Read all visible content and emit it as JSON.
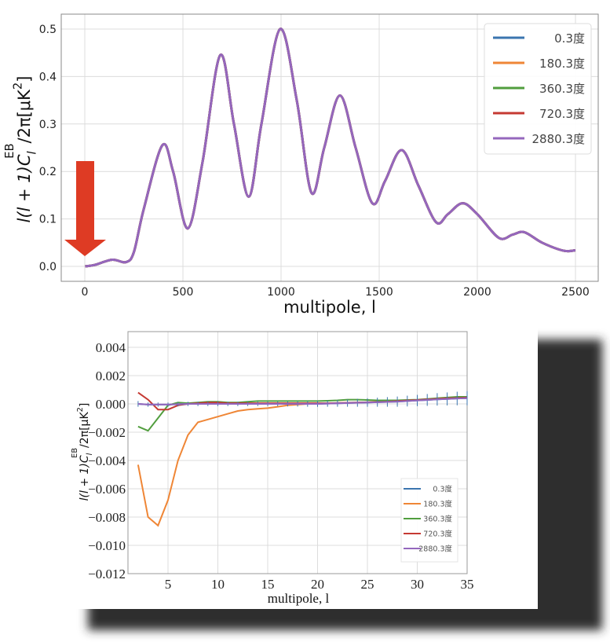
{
  "chart_data": [
    {
      "type": "line",
      "xlabel": "multipole, l",
      "ylabel": {
        "pre": "l(l + 1)C",
        "sub": "l",
        "sup": "EB",
        "mid": "/2π[μK",
        "sup2": "2",
        "post": "]"
      },
      "xlim": [
        -125,
        2625
      ],
      "ylim": [
        -0.035,
        0.53
      ],
      "xticks": [
        "0",
        "500",
        "1000",
        "1500",
        "2000",
        "2500"
      ],
      "xtick_values": [
        0,
        500,
        1000,
        1500,
        2000,
        2500
      ],
      "yticks": [
        "0.0",
        "0.1",
        "0.2",
        "0.3",
        "0.4",
        "0.5"
      ],
      "ytick_values": [
        0,
        0.1,
        0.2,
        0.3,
        0.4,
        0.5
      ],
      "grid": true,
      "legend_position": "top-right",
      "annotation": "red down arrow pointing at low multipoles (l ≈ 0)",
      "x": [
        2,
        50,
        140,
        210,
        250,
        300,
        395,
        450,
        525,
        600,
        690,
        760,
        835,
        900,
        995,
        1080,
        1155,
        1220,
        1300,
        1380,
        1465,
        1530,
        1615,
        1700,
        1790,
        1850,
        1925,
        2000,
        2110,
        2180,
        2240,
        2330,
        2440,
        2500
      ],
      "y": [
        0,
        0.003,
        0.014,
        0.009,
        0.03,
        0.12,
        0.255,
        0.2,
        0.08,
        0.22,
        0.445,
        0.3,
        0.147,
        0.3,
        0.5,
        0.35,
        0.155,
        0.25,
        0.36,
        0.25,
        0.133,
        0.18,
        0.245,
        0.17,
        0.093,
        0.11,
        0.133,
        0.11,
        0.06,
        0.067,
        0.072,
        0.05,
        0.033,
        0.034
      ],
      "series": [
        {
          "name": "0.3度",
          "color": "#3b75af"
        },
        {
          "name": "180.3度",
          "color": "#ef8636"
        },
        {
          "name": "360.3度",
          "color": "#519e3e"
        },
        {
          "name": "720.3度",
          "color": "#c53932"
        },
        {
          "name": "2880.3度",
          "color": "#9467bd"
        }
      ],
      "arrow_color": "#de3b24"
    },
    {
      "type": "line",
      "xlabel": "multipole, l",
      "ylabel": {
        "pre": "l(l + 1)C",
        "sub": "l",
        "sup": "EB",
        "mid": "/2π[μK",
        "sup2": "2",
        "post": "]"
      },
      "xlim": [
        1,
        35
      ],
      "ylim": [
        -0.012,
        0.005
      ],
      "xticks": [
        "5",
        "10",
        "15",
        "20",
        "25",
        "30",
        "35"
      ],
      "xtick_values": [
        5,
        10,
        15,
        20,
        25,
        30,
        35
      ],
      "yticks": [
        "0.004",
        "0.002",
        "0.000",
        "−0.002",
        "−0.004",
        "−0.006",
        "−0.008",
        "−0.010",
        "−0.012"
      ],
      "ytick_values": [
        0.004,
        0.002,
        0,
        -0.002,
        -0.004,
        -0.006,
        -0.008,
        -0.01,
        -0.012
      ],
      "grid": true,
      "legend_position": "lower-right",
      "x_start": 2,
      "series": [
        {
          "name": "0.3度",
          "color": "#3b75af",
          "values": [
            0,
            -5e-05,
            -5e-05,
            -5e-05,
            -3e-05,
            0,
            0,
            0,
            0,
            0,
            0,
            0,
            0,
            0,
            0,
            0,
            0,
            0,
            0,
            2e-05,
            4e-05,
            6e-05,
            8e-05,
            0.0001,
            0.00012,
            0.00014,
            0.00016,
            0.0002,
            0.00024,
            0.00028,
            0.00032,
            0.00035,
            0.00038,
            0.0004
          ],
          "errors": [
            0.0002,
            0.00015,
            0.00015,
            0.00015,
            0.00015,
            0.00015,
            0.00015,
            0.00015,
            0.00015,
            0.00015,
            0.00015,
            0.00015,
            0.00015,
            0.00016,
            0.00017,
            0.00018,
            0.00019,
            0.0002,
            0.00021,
            0.00022,
            0.00024,
            0.00026,
            0.00028,
            0.0003,
            0.00032,
            0.00034,
            0.00036,
            0.00038,
            0.0004,
            0.00042,
            0.00044,
            0.00046,
            0.00048,
            0.0005
          ]
        },
        {
          "name": "180.3度",
          "color": "#ef8636",
          "values": [
            -0.0043,
            -0.008,
            -0.0086,
            -0.0068,
            -0.004,
            -0.0022,
            -0.0013,
            -0.0011,
            -0.0009,
            -0.0007,
            -0.0005,
            -0.0004,
            -0.00035,
            -0.0003,
            -0.0002,
            -0.0001,
            -5e-05,
            0,
            2e-05,
            4e-05,
            6e-05,
            8e-05,
            0.0001,
            0.00012,
            0.00014,
            0.00016,
            0.0002,
            0.00024,
            0.00028,
            0.00032,
            0.00036,
            0.0004,
            0.00042,
            0.00045
          ]
        },
        {
          "name": "360.3度",
          "color": "#519e3e",
          "values": [
            -0.0016,
            -0.0019,
            -0.001,
            -0.0001,
            0.0001,
            5e-05,
            0.0001,
            0.00015,
            0.00015,
            0.0001,
            0.0001,
            0.00015,
            0.0002,
            0.0002,
            0.0002,
            0.0002,
            0.0002,
            0.0002,
            0.0002,
            0.00022,
            0.00025,
            0.0003,
            0.0003,
            0.00028,
            0.00025,
            0.00025,
            0.00025,
            0.00028,
            0.0003,
            0.00035,
            0.0004,
            0.00045,
            0.0005,
            0.0005
          ]
        },
        {
          "name": "720.3度",
          "color": "#c53932",
          "values": [
            0.0008,
            0.0003,
            -0.0004,
            -0.0004,
            -0.0001,
            0,
            5e-05,
            0.0001,
            0.0001,
            5e-05,
            5e-05,
            5e-05,
            5e-05,
            5e-05,
            5e-05,
            5e-05,
            5e-05,
            5e-05,
            5e-05,
            5e-05,
            6e-05,
            8e-05,
            0.0001,
            0.00012,
            0.00014,
            0.00016,
            0.0002,
            0.00024,
            0.00028,
            0.00032,
            0.00036,
            0.0004,
            0.00042,
            0.00045
          ]
        },
        {
          "name": "2880.3度",
          "color": "#9467bd",
          "values": [
            0,
            -4e-05,
            -4e-05,
            -4e-05,
            -2e-05,
            0,
            0,
            0,
            0,
            0,
            0,
            0,
            0,
            0,
            0,
            0,
            0,
            0,
            0,
            2e-05,
            4e-05,
            6e-05,
            8e-05,
            0.0001,
            0.00012,
            0.00014,
            0.00016,
            0.0002,
            0.00024,
            0.00028,
            0.00032,
            0.00035,
            0.00038,
            0.0004
          ]
        }
      ]
    }
  ]
}
